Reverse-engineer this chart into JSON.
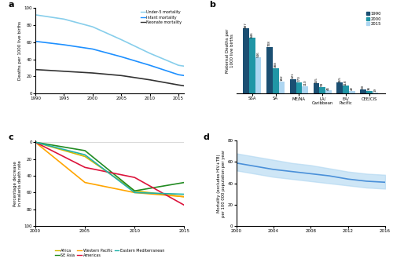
{
  "panel_a": {
    "years": [
      1990,
      1995,
      2000,
      2005,
      2010,
      2015,
      2016
    ],
    "under5": [
      92,
      87,
      78,
      63,
      47,
      33,
      32
    ],
    "infant": [
      61,
      57,
      52,
      43,
      33,
      22,
      21
    ],
    "neonatal": [
      28,
      26,
      24,
      21,
      16,
      10,
      9
    ],
    "ylabel": "Deaths per 1000 live births",
    "xlim": [
      1990,
      2016
    ],
    "ylim": [
      0,
      100
    ],
    "colors": {
      "under5": "#87CEEB",
      "infant": "#1E90FF",
      "neonatal": "#333333"
    },
    "legend": [
      "Under-5 mortality",
      "Infant mortality",
      "Neonate mortality"
    ]
  },
  "panel_b": {
    "categories": [
      "SSA",
      "SA",
      "ME/NA",
      "LA/\nCaribbean",
      "EA/\nPacific",
      "CEE/CIS"
    ],
    "values_1990": [
      987,
      708,
      221,
      155,
      165,
      60
    ],
    "values_2000": [
      846,
      388,
      170,
      99,
      118,
      36
    ],
    "values_2015": [
      546,
      182,
      110,
      46,
      42,
      19
    ],
    "ylabel": "Maternal Deaths per\n1000 live births",
    "colors": {
      "1990": "#1B4F72",
      "2000": "#2196A6",
      "2015": "#AED6F1"
    },
    "legend": [
      "1990",
      "2000",
      "2015"
    ]
  },
  "panel_c": {
    "years": [
      2000,
      2005,
      2010,
      2015
    ],
    "africa": [
      0,
      -17,
      -58,
      -65
    ],
    "se_asia": [
      0,
      -10,
      -58,
      -48
    ],
    "western_pacific": [
      0,
      -48,
      -60,
      -65
    ],
    "americas": [
      0,
      -30,
      -42,
      -75
    ],
    "eastern_mediterranean": [
      0,
      -15,
      -60,
      -62
    ],
    "ylabel": "Percentage decrease\nin malaria death rate",
    "colors": {
      "africa": "#D4B800",
      "se_asia": "#228B22",
      "western_pacific": "#FFA500",
      "americas": "#DC143C",
      "eastern_mediterranean": "#20B2AA"
    },
    "legend": [
      "Africa",
      "SE Asia",
      "Western Pacific",
      "Americas",
      "Eastern Mediterranean"
    ]
  },
  "panel_d": {
    "years": [
      2000,
      2002,
      2004,
      2006,
      2008,
      2010,
      2012,
      2014,
      2016
    ],
    "mean": [
      59,
      56,
      53,
      51,
      49,
      47,
      44,
      42,
      41
    ],
    "upper": [
      68,
      65,
      62,
      59,
      57,
      54,
      51,
      49,
      48
    ],
    "lower": [
      52,
      49,
      46,
      44,
      42,
      40,
      38,
      36,
      35
    ],
    "ylabel": "Mortality (excludes HIV+TB)\nper 100 000 population per year",
    "xlim": [
      2000,
      2016
    ],
    "ylim": [
      0,
      80
    ],
    "color": "#4A90D9",
    "fill_color": "#AED6F1"
  }
}
